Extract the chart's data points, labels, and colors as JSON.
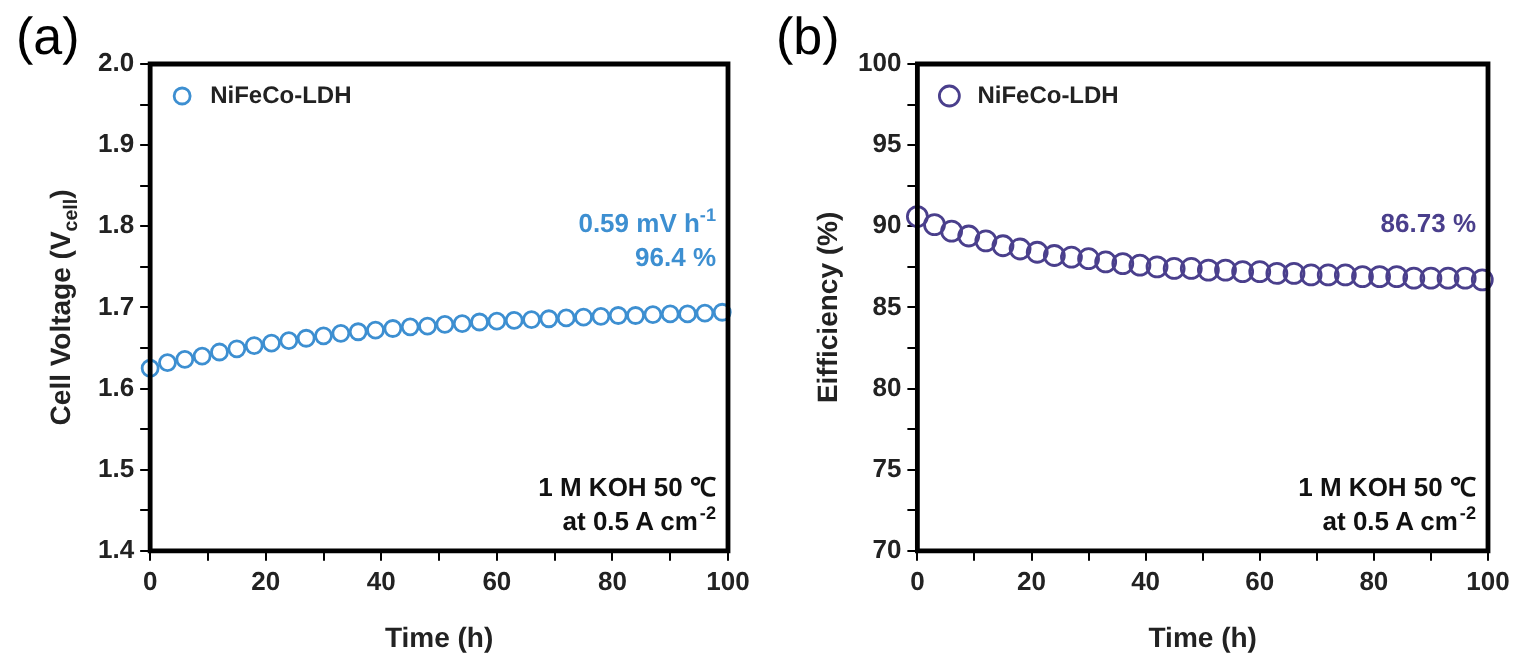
{
  "chart_data": [
    {
      "type": "scatter",
      "title": "(a)",
      "xlabel": "Time (h)",
      "ylabel": "Cell Voltage (V$_{cell}$)",
      "x": [
        0,
        3,
        6,
        9,
        12,
        15,
        18,
        21,
        24,
        27,
        30,
        33,
        36,
        39,
        42,
        45,
        48,
        51,
        54,
        57,
        60,
        63,
        66,
        69,
        72,
        75,
        78,
        81,
        84,
        87,
        90,
        93,
        96,
        99
      ],
      "series": [
        {
          "name": "NiFeCo-LDH",
          "color": "#3d8fd1",
          "values": [
            1.625,
            1.632,
            1.636,
            1.64,
            1.645,
            1.649,
            1.653,
            1.656,
            1.659,
            1.662,
            1.665,
            1.668,
            1.67,
            1.672,
            1.674,
            1.676,
            1.677,
            1.679,
            1.68,
            1.682,
            1.683,
            1.684,
            1.685,
            1.686,
            1.687,
            1.688,
            1.689,
            1.69,
            1.69,
            1.691,
            1.692,
            1.692,
            1.693,
            1.694
          ]
        }
      ],
      "xlim": [
        0,
        100
      ],
      "xticks": [
        0,
        {
          "value": 10,
          "label": null
        },
        20,
        {
          "value": 30,
          "label": null
        },
        40,
        {
          "value": 50,
          "label": null
        },
        60,
        {
          "value": 70,
          "label": null
        },
        80,
        {
          "value": 90,
          "label": null
        },
        100
      ],
      "ylim": [
        1.4,
        2.0
      ],
      "yticks": [
        1.4,
        {
          "value": 1.45,
          "label": null
        },
        1.5,
        {
          "value": 1.55,
          "label": null
        },
        1.6,
        {
          "value": 1.65,
          "label": null
        },
        1.7,
        {
          "value": 1.75,
          "label": null
        },
        1.8,
        {
          "value": 1.85,
          "label": null
        },
        1.9,
        {
          "value": 1.95,
          "label": null
        },
        {
          "value": 2,
          "label": "2.0"
        }
      ],
      "grid": false,
      "legend": "top left",
      "marker": "circle",
      "annotations": [
        "0.59 mV h$^{-1}$",
        "96.4 %",
        "1 M KOH 50 ℃",
        "at 0.5 A cm$^{-2}$"
      ]
    },
    {
      "type": "scatter",
      "title": "(b)",
      "xlabel": "Time (h)",
      "ylabel": "Eifficiency (%)",
      "x": [
        0,
        3,
        6,
        9,
        12,
        15,
        18,
        21,
        24,
        27,
        30,
        33,
        36,
        39,
        42,
        45,
        48,
        51,
        54,
        57,
        60,
        63,
        66,
        69,
        72,
        75,
        78,
        81,
        84,
        87,
        90,
        93,
        96,
        99
      ],
      "series": [
        {
          "name": "NiFeCo-LDH",
          "color": "#4a3f8c",
          "values": [
            90.6,
            90.1,
            89.7,
            89.4,
            89.1,
            88.8,
            88.6,
            88.4,
            88.2,
            88.1,
            88.0,
            87.8,
            87.7,
            87.6,
            87.5,
            87.4,
            87.4,
            87.3,
            87.3,
            87.2,
            87.2,
            87.1,
            87.1,
            87.0,
            87.0,
            87.0,
            86.9,
            86.9,
            86.9,
            86.8,
            86.8,
            86.8,
            86.8,
            86.7
          ]
        }
      ],
      "xlim": [
        0,
        100
      ],
      "xticks": [
        0,
        {
          "value": 10,
          "label": null
        },
        20,
        {
          "value": 30,
          "label": null
        },
        40,
        {
          "value": 50,
          "label": null
        },
        60,
        {
          "value": 70,
          "label": null
        },
        80,
        {
          "value": 90,
          "label": null
        },
        100
      ],
      "ylim": [
        70,
        100
      ],
      "yticks": [
        70,
        {
          "value": 72.5,
          "label": null
        },
        75,
        {
          "value": 77.5,
          "label": null
        },
        80,
        {
          "value": 82.5,
          "label": null
        },
        85,
        {
          "value": 87.5,
          "label": null
        },
        90,
        {
          "value": 92.5,
          "label": null
        },
        95,
        {
          "value": 97.5,
          "label": null
        },
        100
      ],
      "grid": false,
      "legend": "top left",
      "marker": "circle",
      "annotations": [
        "86.73 %",
        "1 M KOH 50 ℃",
        "at 0.5 A cm$^{-2}$"
      ]
    }
  ]
}
